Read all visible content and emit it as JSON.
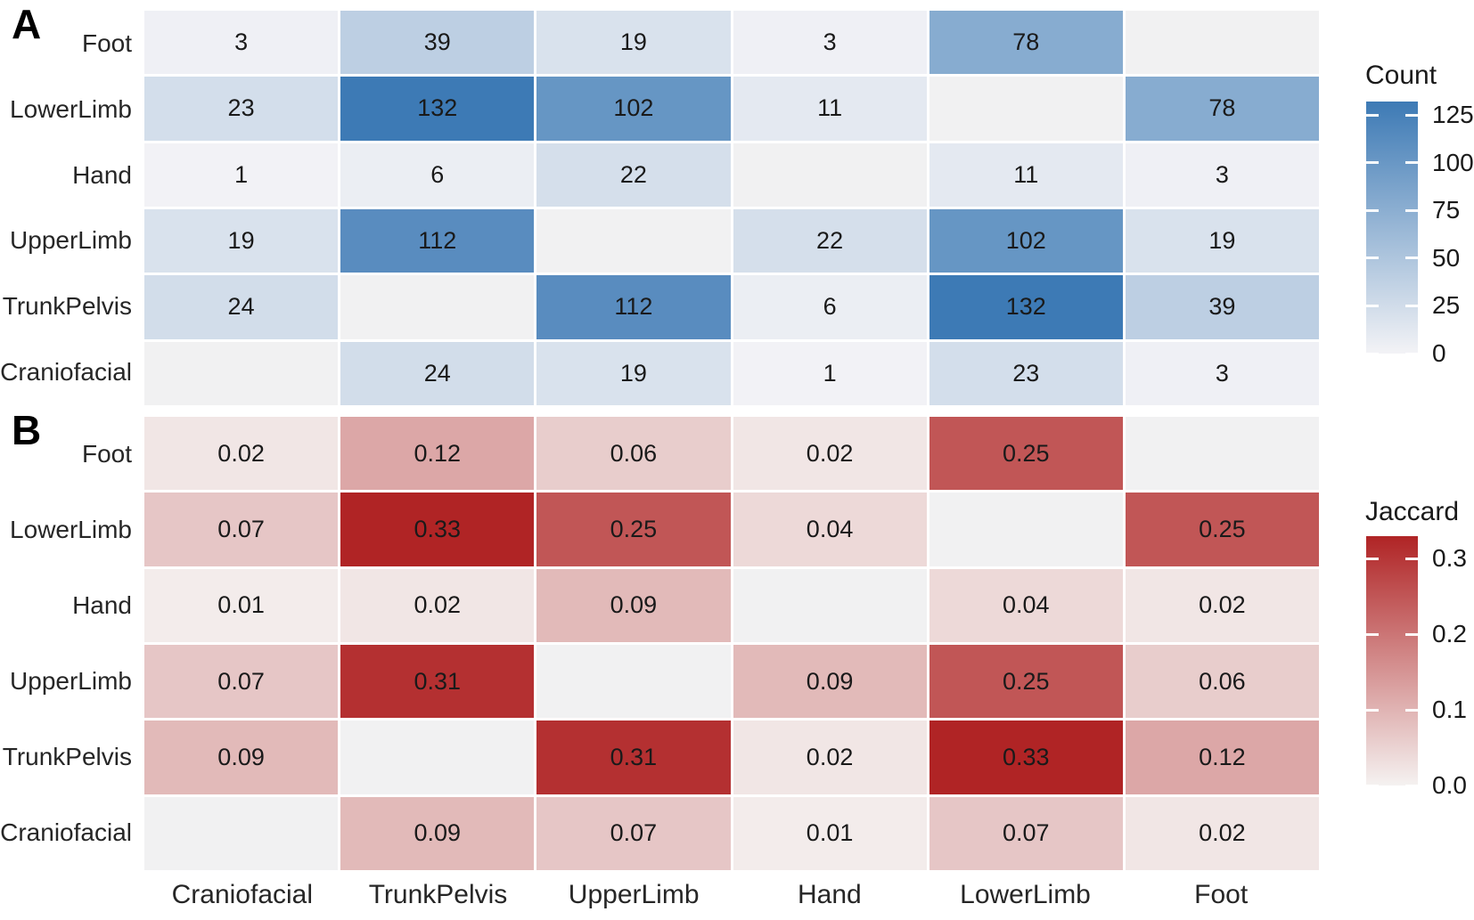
{
  "chart_data": [
    {
      "type": "heatmap",
      "panel_letter": "A",
      "legend_title": "Count",
      "x_categories": [
        "Craniofacial",
        "TrunkPelvis",
        "UpperLimb",
        "Hand",
        "LowerLimb",
        "Foot"
      ],
      "y_categories": [
        "Foot",
        "LowerLimb",
        "Hand",
        "UpperLimb",
        "TrunkPelvis",
        "Craniofacial"
      ],
      "values": [
        [
          3,
          39,
          19,
          3,
          78,
          null
        ],
        [
          23,
          132,
          102,
          11,
          null,
          78
        ],
        [
          1,
          6,
          22,
          null,
          11,
          3
        ],
        [
          19,
          112,
          null,
          22,
          102,
          19
        ],
        [
          24,
          null,
          112,
          6,
          132,
          39
        ],
        [
          null,
          24,
          19,
          1,
          23,
          3
        ]
      ],
      "scale": {
        "min": 0,
        "max": 132,
        "decimals": 0,
        "low_color": "#F3F3F6",
        "high_color": "#3D7AB5",
        "na_color": "#F1F1F2"
      },
      "legend_ticks": [
        {
          "label": "125",
          "value": 125
        },
        {
          "label": "100",
          "value": 100
        },
        {
          "label": "75",
          "value": 75
        },
        {
          "label": "50",
          "value": 50
        },
        {
          "label": "25",
          "value": 25
        },
        {
          "label": "0",
          "value": 0
        }
      ]
    },
    {
      "type": "heatmap",
      "panel_letter": "B",
      "legend_title": "Jaccard",
      "x_categories": [
        "Craniofacial",
        "TrunkPelvis",
        "UpperLimb",
        "Hand",
        "LowerLimb",
        "Foot"
      ],
      "y_categories": [
        "Foot",
        "LowerLimb",
        "Hand",
        "UpperLimb",
        "TrunkPelvis",
        "Craniofacial"
      ],
      "values": [
        [
          0.02,
          0.12,
          0.06,
          0.02,
          0.25,
          null
        ],
        [
          0.07,
          0.33,
          0.25,
          0.04,
          null,
          0.25
        ],
        [
          0.01,
          0.02,
          0.09,
          null,
          0.04,
          0.02
        ],
        [
          0.07,
          0.31,
          null,
          0.09,
          0.25,
          0.06
        ],
        [
          0.09,
          null,
          0.31,
          0.02,
          0.33,
          0.12
        ],
        [
          null,
          0.09,
          0.07,
          0.01,
          0.07,
          0.02
        ]
      ],
      "scale": {
        "min": 0,
        "max": 0.33,
        "decimals": 2,
        "low_color": "#F5F2F1",
        "high_color": "#B02425",
        "na_color": "#F1F1F2"
      },
      "legend_ticks": [
        {
          "label": "0.3",
          "value": 0.3
        },
        {
          "label": "0.2",
          "value": 0.2
        },
        {
          "label": "0.1",
          "value": 0.1
        },
        {
          "label": "0.0",
          "value": 0.0
        }
      ]
    }
  ]
}
